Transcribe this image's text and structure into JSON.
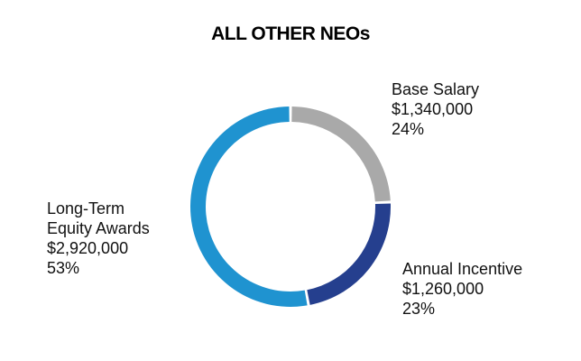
{
  "chart_data": {
    "type": "pie",
    "title": "ALL OTHER NEOs",
    "donut": true,
    "slices": [
      {
        "label": "Base Salary",
        "label_lines": [
          "Base Salary"
        ],
        "amount": "$1,340,000",
        "percent_label": "24%",
        "value": 1340000,
        "color": "#a9a9a9"
      },
      {
        "label": "Annual Incentive",
        "label_lines": [
          "Annual Incentive"
        ],
        "amount": "$1,260,000",
        "percent_label": "23%",
        "value": 1260000,
        "color": "#253f8e"
      },
      {
        "label": "Long-Term Equity Awards",
        "label_lines": [
          "Long-Term",
          "Equity Awards"
        ],
        "amount": "$2,920,000",
        "percent_label": "53%",
        "value": 2920000,
        "color": "#1f93d0"
      }
    ]
  }
}
